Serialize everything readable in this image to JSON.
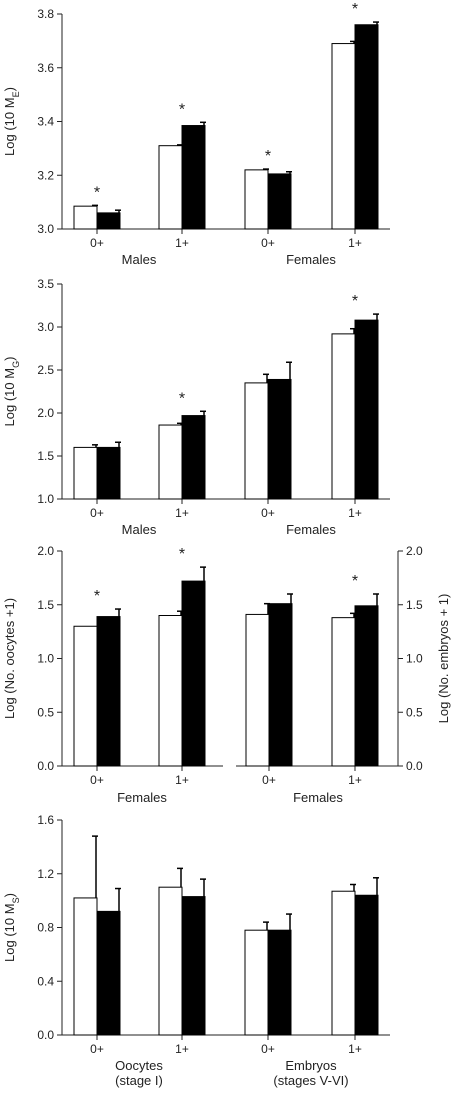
{
  "chart_data": [
    {
      "type": "bar",
      "ylabel": "Log (10 M",
      "ylabel_sub": "E",
      "ylim": [
        3.0,
        3.8
      ],
      "yticks": [
        "3.0",
        "3.2",
        "3.4",
        "3.6",
        "3.8"
      ],
      "categories": [
        "0+",
        "1+",
        "0+",
        "1+"
      ],
      "groups": [
        "Males",
        "Females"
      ],
      "series": [
        {
          "color": "#ffffff",
          "values": [
            3.085,
            3.31,
            3.22,
            3.69
          ],
          "err": [
            0.003,
            0.003,
            0.003,
            0.008
          ]
        },
        {
          "color": "#000000",
          "values": [
            3.06,
            3.385,
            3.205,
            3.76
          ],
          "err": [
            0.01,
            0.012,
            0.008,
            0.01
          ]
        }
      ],
      "significant": [
        true,
        true,
        true,
        true
      ],
      "marker": "*"
    },
    {
      "type": "bar",
      "ylabel": "Log (10 M",
      "ylabel_sub": "G",
      "ylim": [
        1.0,
        3.5
      ],
      "yticks": [
        "1.0",
        "1.5",
        "2.0",
        "2.5",
        "3.0",
        "3.5"
      ],
      "categories": [
        "0+",
        "1+",
        "0+",
        "1+"
      ],
      "groups": [
        "Males",
        "Females"
      ],
      "series": [
        {
          "color": "#ffffff",
          "values": [
            1.6,
            1.86,
            2.35,
            2.92
          ],
          "err": [
            0.03,
            0.02,
            0.1,
            0.06
          ]
        },
        {
          "color": "#000000",
          "values": [
            1.6,
            1.97,
            2.39,
            3.08
          ],
          "err": [
            0.06,
            0.05,
            0.2,
            0.07
          ]
        }
      ],
      "significant": [
        false,
        true,
        false,
        true
      ],
      "marker": "*"
    },
    {
      "type": "bar",
      "ylabel": "Log (No. oocytes +1)",
      "ylim": [
        0.0,
        2.0
      ],
      "yticks": [
        "0.0",
        "0.5",
        "1.0",
        "1.5",
        "2.0"
      ],
      "categories": [
        "0+",
        "1+"
      ],
      "groups": [
        "Females"
      ],
      "series": [
        {
          "color": "#ffffff",
          "values": [
            1.3,
            1.4
          ],
          "err": [
            0.0,
            0.04
          ]
        },
        {
          "color": "#000000",
          "values": [
            1.39,
            1.72
          ],
          "err": [
            0.07,
            0.13
          ]
        }
      ],
      "significant": [
        true,
        true
      ],
      "marker": "*"
    },
    {
      "type": "bar",
      "ylabel": "Log (No. embryos + 1)",
      "ylim": [
        0.0,
        2.0
      ],
      "yticks": [
        "0.0",
        "0.5",
        "1.0",
        "1.5",
        "2.0"
      ],
      "categories": [
        "0+",
        "1+"
      ],
      "groups": [
        "Females"
      ],
      "series": [
        {
          "color": "#ffffff",
          "values": [
            1.41,
            1.38
          ],
          "err": [
            0.1,
            0.04
          ]
        },
        {
          "color": "#000000",
          "values": [
            1.51,
            1.49
          ],
          "err": [
            0.09,
            0.11
          ]
        }
      ],
      "significant": [
        false,
        true
      ],
      "marker": "*"
    },
    {
      "type": "bar",
      "ylabel": "Log (10 M",
      "ylabel_sub": "S",
      "ylim": [
        0.0,
        1.6
      ],
      "yticks": [
        "0.0",
        "0.4",
        "0.8",
        "1.2",
        "1.6"
      ],
      "categories": [
        "0+",
        "1+",
        "0+",
        "1+"
      ],
      "groups": [
        "Oocytes\n(stage I)",
        "Embryos\n(stages V-VI)"
      ],
      "series": [
        {
          "color": "#ffffff",
          "values": [
            1.02,
            1.1,
            0.78,
            1.07
          ],
          "err": [
            0.46,
            0.14,
            0.06,
            0.05
          ]
        },
        {
          "color": "#000000",
          "values": [
            0.92,
            1.03,
            0.78,
            1.04
          ],
          "err": [
            0.17,
            0.13,
            0.12,
            0.13
          ]
        }
      ],
      "significant": [
        false,
        false,
        false,
        false
      ],
      "marker": "*"
    }
  ]
}
